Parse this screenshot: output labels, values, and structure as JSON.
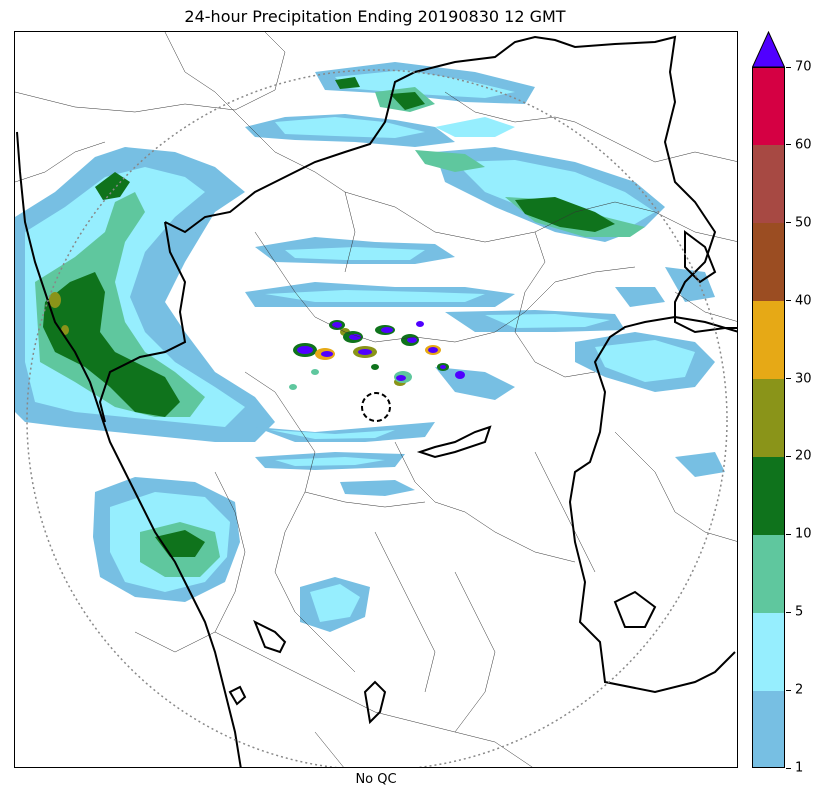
{
  "title": "24-hour Precipitation Ending 20190830 12 GMT",
  "xlabel": "No QC",
  "colorbar": {
    "levels": [
      "1",
      "2",
      "5",
      "10",
      "20",
      "30",
      "40",
      "50",
      "60",
      "70"
    ],
    "colors": [
      "#77bfe3",
      "#96eefe",
      "#5fc79e",
      "#0f731c",
      "#8a9419",
      "#e6a916",
      "#9b4d22",
      "#a74943",
      "#d50043"
    ],
    "over_color": "#5000ff"
  },
  "map": {
    "precip_colors": {
      "p1": "#77bfe3",
      "p2": "#96eefe",
      "p5": "#5fc79e",
      "p10": "#0f731c",
      "p20": "#8a9419",
      "p30": "#e6a916",
      "over": "#5000ff"
    },
    "range_ring": "dotted grey",
    "radar_marker": "dashed black circle"
  }
}
